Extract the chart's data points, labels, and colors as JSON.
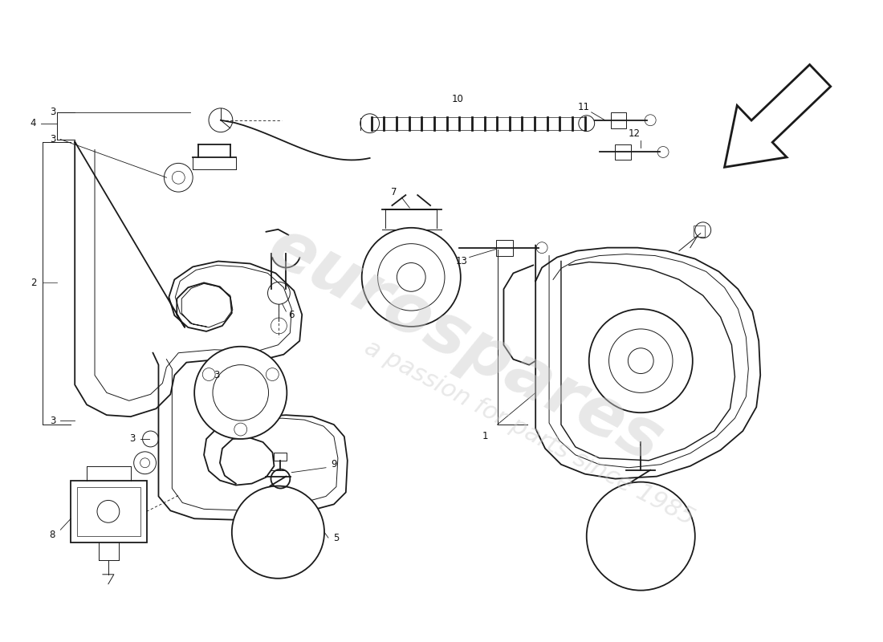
{
  "bg_color": "#ffffff",
  "line_color": "#1a1a1a",
  "fig_width": 11.0,
  "fig_height": 8.0,
  "dpi": 100,
  "wm1": "eurospares",
  "wm2": "a passion for parts since 1985",
  "wm_color": "#cccccc",
  "lw_main": 1.3,
  "lw_thin": 0.7,
  "lw_dash": 0.6,
  "label_fs": 8.5,
  "label_color": "#111111"
}
